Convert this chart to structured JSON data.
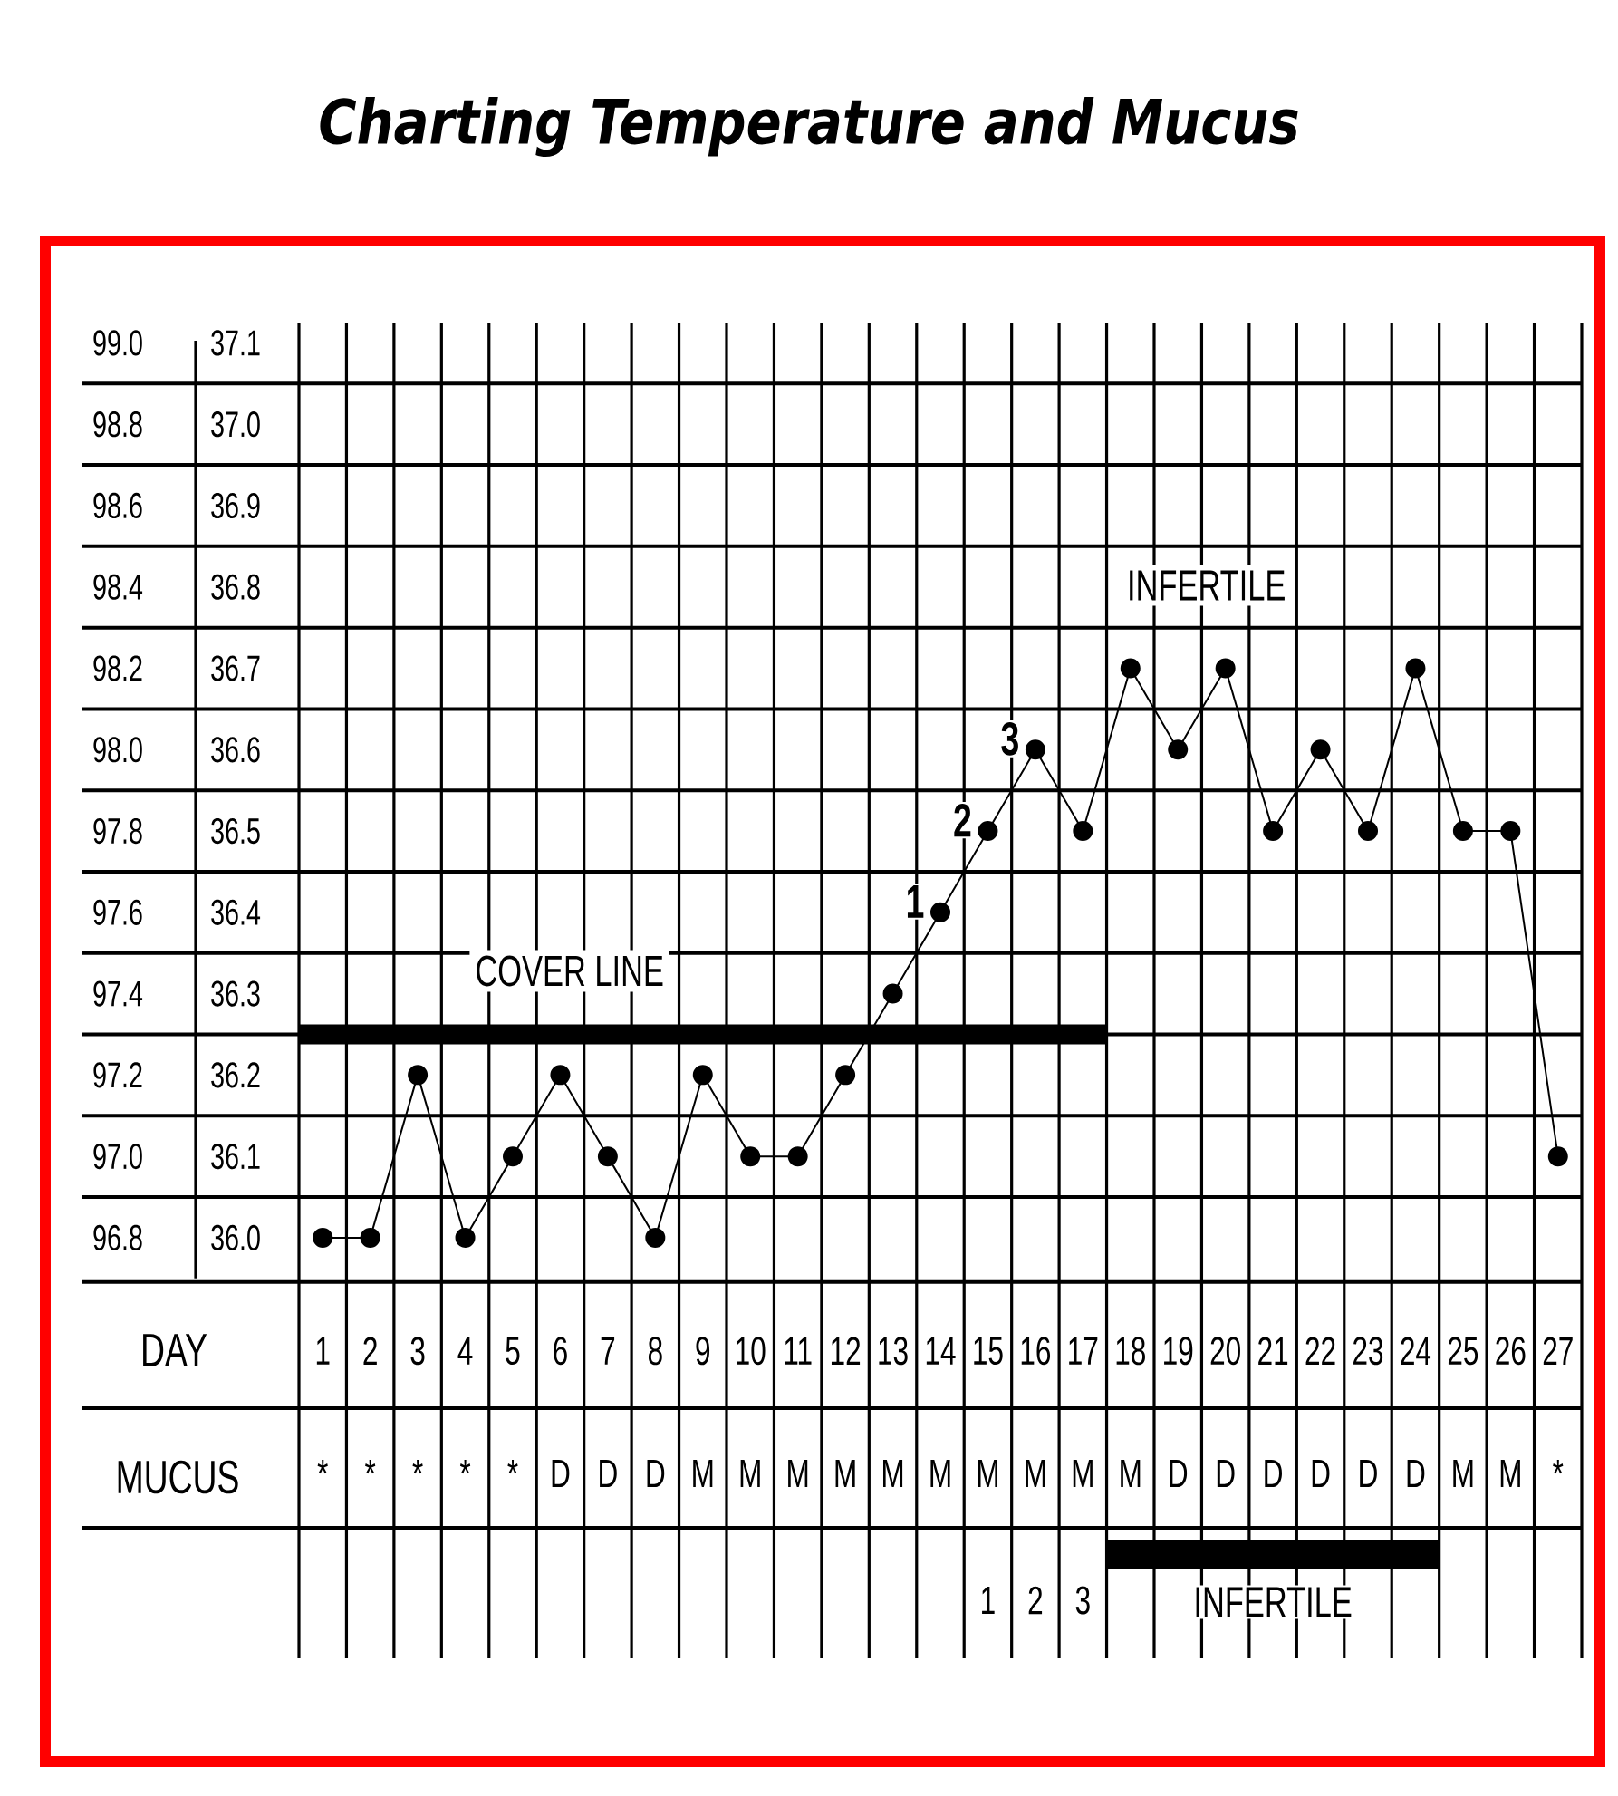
{
  "chart_data": {
    "type": "line",
    "title": "Charting Temperature and Mucus",
    "xlabel": "DAY",
    "x": [
      1,
      2,
      3,
      4,
      5,
      6,
      7,
      8,
      9,
      10,
      11,
      12,
      13,
      14,
      15,
      16,
      17,
      18,
      19,
      20,
      21,
      22,
      23,
      24,
      25,
      26,
      27
    ],
    "series": [
      {
        "color": "#000000",
        "values": [
          96.8,
          96.8,
          97.2,
          96.8,
          97.0,
          97.2,
          97.0,
          96.8,
          97.2,
          97.0,
          97.0,
          97.2,
          97.4,
          97.6,
          97.8,
          98.0,
          97.8,
          98.2,
          98.0,
          98.2,
          97.8,
          98.0,
          97.8,
          98.2,
          97.8,
          97.8,
          97.0
        ]
      },
      {
        "name": "COVER LINE",
        "type": "line",
        "color": "#000000",
        "marker": "none",
        "x": [
          0.5,
          17.5
        ],
        "values": [
          97.3,
          97.3
        ]
      }
    ],
    "xlim": [
      0.5,
      27.5
    ],
    "xticks": [
      1,
      2,
      3,
      4,
      5,
      6,
      7,
      8,
      9,
      10,
      11,
      12,
      13,
      14,
      15,
      16,
      17,
      18,
      19,
      20,
      21,
      22,
      23,
      24,
      25,
      26,
      27
    ],
    "ylim": [
      96.7,
      99.05
    ],
    "yticks": [
      96.8,
      {
        "value": 97.0,
        "label": "97.0"
      },
      97.2,
      97.4,
      97.6,
      97.8,
      {
        "value": 98.0,
        "label": "98.0"
      },
      98.2,
      98.4,
      98.6,
      98.8,
      {
        "value": 99.0,
        "label": "99.0"
      }
    ],
    "y2lim": [
      35.95,
      37.125
    ],
    "y2ticks": [
      {
        "value": 36.0,
        "label": "36.0"
      },
      36.1,
      36.2,
      36.3,
      36.4,
      36.5,
      36.6,
      36.7,
      36.8,
      36.9,
      {
        "value": 37.0,
        "label": "37.0"
      },
      37.1
    ],
    "annotations": [
      "1",
      "2",
      "3",
      "INFERTILE",
      "1",
      "2",
      "3",
      "INFERTILE",
      "MUCUS",
      "*",
      "*",
      "*",
      "*",
      "*",
      "D",
      "D",
      "D",
      "M",
      "M",
      "M",
      "M",
      "M",
      "M",
      "M",
      "M",
      "M",
      "M",
      "D",
      "D",
      "D",
      "D",
      "D",
      "D",
      "M",
      "M",
      "*"
    ],
    "grid": true,
    "marker": "circle",
    "line_style": "solid"
  }
}
